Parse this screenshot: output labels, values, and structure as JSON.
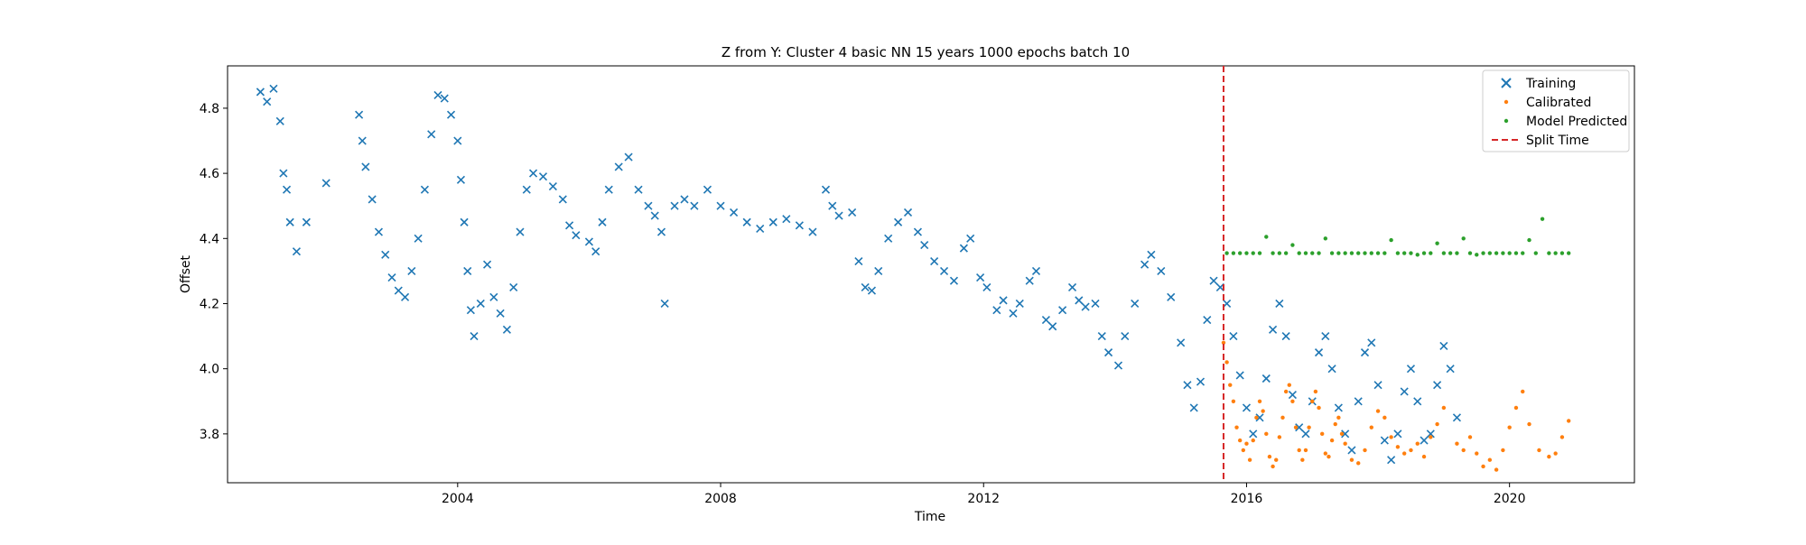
{
  "chart_data": {
    "type": "scatter",
    "title": "Z from Y: Cluster 4 basic NN 15 years 1000 epochs batch 10",
    "xlabel": "Time",
    "ylabel": "Offset",
    "xlim": [
      2000.5,
      2021.9
    ],
    "ylim": [
      3.65,
      4.93
    ],
    "x_ticks": [
      2004,
      2008,
      2012,
      2016,
      2020
    ],
    "y_ticks": [
      3.8,
      4.0,
      4.2,
      4.4,
      4.6,
      4.8
    ],
    "grid": false,
    "legend_position": "top-right",
    "split_time": 2015.65,
    "split_line_color": "#d62728",
    "split_line_label": "Split Time",
    "series": [
      {
        "name": "Training",
        "marker": "x",
        "color": "#1f77b4",
        "points": [
          [
            2001.0,
            4.85
          ],
          [
            2001.1,
            4.82
          ],
          [
            2001.2,
            4.86
          ],
          [
            2001.3,
            4.76
          ],
          [
            2001.35,
            4.6
          ],
          [
            2001.4,
            4.55
          ],
          [
            2001.45,
            4.45
          ],
          [
            2001.55,
            4.36
          ],
          [
            2001.7,
            4.45
          ],
          [
            2002.0,
            4.57
          ],
          [
            2002.5,
            4.78
          ],
          [
            2002.55,
            4.7
          ],
          [
            2002.6,
            4.62
          ],
          [
            2002.7,
            4.52
          ],
          [
            2002.8,
            4.42
          ],
          [
            2002.9,
            4.35
          ],
          [
            2003.0,
            4.28
          ],
          [
            2003.1,
            4.24
          ],
          [
            2003.2,
            4.22
          ],
          [
            2003.3,
            4.3
          ],
          [
            2003.4,
            4.4
          ],
          [
            2003.5,
            4.55
          ],
          [
            2003.6,
            4.72
          ],
          [
            2003.7,
            4.84
          ],
          [
            2003.8,
            4.83
          ],
          [
            2003.9,
            4.78
          ],
          [
            2004.0,
            4.7
          ],
          [
            2004.05,
            4.58
          ],
          [
            2004.1,
            4.45
          ],
          [
            2004.15,
            4.3
          ],
          [
            2004.2,
            4.18
          ],
          [
            2004.25,
            4.1
          ],
          [
            2004.35,
            4.2
          ],
          [
            2004.45,
            4.32
          ],
          [
            2004.55,
            4.22
          ],
          [
            2004.65,
            4.17
          ],
          [
            2004.75,
            4.12
          ],
          [
            2004.85,
            4.25
          ],
          [
            2004.95,
            4.42
          ],
          [
            2005.05,
            4.55
          ],
          [
            2005.15,
            4.6
          ],
          [
            2005.3,
            4.59
          ],
          [
            2005.45,
            4.56
          ],
          [
            2005.6,
            4.52
          ],
          [
            2005.7,
            4.44
          ],
          [
            2005.8,
            4.41
          ],
          [
            2006.0,
            4.39
          ],
          [
            2006.1,
            4.36
          ],
          [
            2006.2,
            4.45
          ],
          [
            2006.3,
            4.55
          ],
          [
            2006.45,
            4.62
          ],
          [
            2006.6,
            4.65
          ],
          [
            2006.75,
            4.55
          ],
          [
            2006.9,
            4.5
          ],
          [
            2007.0,
            4.47
          ],
          [
            2007.1,
            4.42
          ],
          [
            2007.15,
            4.2
          ],
          [
            2007.3,
            4.5
          ],
          [
            2007.45,
            4.52
          ],
          [
            2007.6,
            4.5
          ],
          [
            2007.8,
            4.55
          ],
          [
            2008.0,
            4.5
          ],
          [
            2008.2,
            4.48
          ],
          [
            2008.4,
            4.45
          ],
          [
            2008.6,
            4.43
          ],
          [
            2008.8,
            4.45
          ],
          [
            2009.0,
            4.46
          ],
          [
            2009.2,
            4.44
          ],
          [
            2009.4,
            4.42
          ],
          [
            2009.6,
            4.55
          ],
          [
            2009.7,
            4.5
          ],
          [
            2009.8,
            4.47
          ],
          [
            2010.0,
            4.48
          ],
          [
            2010.1,
            4.33
          ],
          [
            2010.2,
            4.25
          ],
          [
            2010.3,
            4.24
          ],
          [
            2010.4,
            4.3
          ],
          [
            2010.55,
            4.4
          ],
          [
            2010.7,
            4.45
          ],
          [
            2010.85,
            4.48
          ],
          [
            2011.0,
            4.42
          ],
          [
            2011.1,
            4.38
          ],
          [
            2011.25,
            4.33
          ],
          [
            2011.4,
            4.3
          ],
          [
            2011.55,
            4.27
          ],
          [
            2011.7,
            4.37
          ],
          [
            2011.8,
            4.4
          ],
          [
            2011.95,
            4.28
          ],
          [
            2012.05,
            4.25
          ],
          [
            2012.2,
            4.18
          ],
          [
            2012.3,
            4.21
          ],
          [
            2012.45,
            4.17
          ],
          [
            2012.55,
            4.2
          ],
          [
            2012.7,
            4.27
          ],
          [
            2012.8,
            4.3
          ],
          [
            2012.95,
            4.15
          ],
          [
            2013.05,
            4.13
          ],
          [
            2013.2,
            4.18
          ],
          [
            2013.35,
            4.25
          ],
          [
            2013.45,
            4.21
          ],
          [
            2013.55,
            4.19
          ],
          [
            2013.7,
            4.2
          ],
          [
            2013.8,
            4.1
          ],
          [
            2013.9,
            4.05
          ],
          [
            2014.05,
            4.01
          ],
          [
            2014.15,
            4.1
          ],
          [
            2014.3,
            4.2
          ],
          [
            2014.45,
            4.32
          ],
          [
            2014.55,
            4.35
          ],
          [
            2014.7,
            4.3
          ],
          [
            2014.85,
            4.22
          ],
          [
            2015.0,
            4.08
          ],
          [
            2015.1,
            3.95
          ],
          [
            2015.2,
            3.88
          ],
          [
            2015.3,
            3.96
          ],
          [
            2015.4,
            4.15
          ],
          [
            2015.5,
            4.27
          ],
          [
            2015.6,
            4.25
          ],
          [
            2015.7,
            4.2
          ],
          [
            2015.8,
            4.1
          ],
          [
            2015.9,
            3.98
          ],
          [
            2016.0,
            3.88
          ],
          [
            2016.1,
            3.8
          ],
          [
            2016.2,
            3.85
          ],
          [
            2016.3,
            3.97
          ],
          [
            2016.4,
            4.12
          ],
          [
            2016.5,
            4.2
          ],
          [
            2016.6,
            4.1
          ],
          [
            2016.7,
            3.92
          ],
          [
            2016.8,
            3.82
          ],
          [
            2016.9,
            3.8
          ],
          [
            2017.0,
            3.9
          ],
          [
            2017.1,
            4.05
          ],
          [
            2017.2,
            4.1
          ],
          [
            2017.3,
            4.0
          ],
          [
            2017.4,
            3.88
          ],
          [
            2017.5,
            3.8
          ],
          [
            2017.6,
            3.75
          ],
          [
            2017.7,
            3.9
          ],
          [
            2017.8,
            4.05
          ],
          [
            2017.9,
            4.08
          ],
          [
            2018.0,
            3.95
          ],
          [
            2018.1,
            3.78
          ],
          [
            2018.2,
            3.72
          ],
          [
            2018.3,
            3.8
          ],
          [
            2018.4,
            3.93
          ],
          [
            2018.5,
            4.0
          ],
          [
            2018.6,
            3.9
          ],
          [
            2018.7,
            3.78
          ],
          [
            2018.8,
            3.8
          ],
          [
            2018.9,
            3.95
          ],
          [
            2019.0,
            4.07
          ],
          [
            2019.1,
            4.0
          ],
          [
            2019.2,
            3.85
          ]
        ]
      },
      {
        "name": "Calibrated",
        "marker": "dot",
        "color": "#ff7f0e",
        "points": [
          [
            2015.65,
            4.08
          ],
          [
            2015.7,
            4.02
          ],
          [
            2015.75,
            3.95
          ],
          [
            2015.8,
            3.9
          ],
          [
            2015.85,
            3.82
          ],
          [
            2015.9,
            3.78
          ],
          [
            2015.95,
            3.75
          ],
          [
            2016.0,
            3.77
          ],
          [
            2016.05,
            3.72
          ],
          [
            2016.1,
            3.78
          ],
          [
            2016.15,
            3.85
          ],
          [
            2016.2,
            3.9
          ],
          [
            2016.25,
            3.87
          ],
          [
            2016.3,
            3.8
          ],
          [
            2016.35,
            3.73
          ],
          [
            2016.4,
            3.7
          ],
          [
            2016.45,
            3.72
          ],
          [
            2016.5,
            3.79
          ],
          [
            2016.55,
            3.85
          ],
          [
            2016.6,
            3.93
          ],
          [
            2016.65,
            3.95
          ],
          [
            2016.7,
            3.9
          ],
          [
            2016.75,
            3.82
          ],
          [
            2016.8,
            3.75
          ],
          [
            2016.85,
            3.72
          ],
          [
            2016.9,
            3.75
          ],
          [
            2016.95,
            3.82
          ],
          [
            2017.0,
            3.9
          ],
          [
            2017.05,
            3.93
          ],
          [
            2017.1,
            3.88
          ],
          [
            2017.15,
            3.8
          ],
          [
            2017.2,
            3.74
          ],
          [
            2017.25,
            3.73
          ],
          [
            2017.3,
            3.78
          ],
          [
            2017.35,
            3.83
          ],
          [
            2017.4,
            3.85
          ],
          [
            2017.45,
            3.8
          ],
          [
            2017.5,
            3.77
          ],
          [
            2017.6,
            3.72
          ],
          [
            2017.7,
            3.71
          ],
          [
            2017.8,
            3.75
          ],
          [
            2017.9,
            3.82
          ],
          [
            2018.0,
            3.87
          ],
          [
            2018.1,
            3.85
          ],
          [
            2018.2,
            3.79
          ],
          [
            2018.3,
            3.76
          ],
          [
            2018.4,
            3.74
          ],
          [
            2018.5,
            3.75
          ],
          [
            2018.6,
            3.77
          ],
          [
            2018.7,
            3.73
          ],
          [
            2018.8,
            3.79
          ],
          [
            2018.9,
            3.83
          ],
          [
            2019.0,
            3.88
          ],
          [
            2019.2,
            3.77
          ],
          [
            2019.3,
            3.75
          ],
          [
            2019.4,
            3.79
          ],
          [
            2019.5,
            3.74
          ],
          [
            2019.6,
            3.7
          ],
          [
            2019.7,
            3.72
          ],
          [
            2019.8,
            3.69
          ],
          [
            2019.9,
            3.75
          ],
          [
            2020.0,
            3.82
          ],
          [
            2020.1,
            3.88
          ],
          [
            2020.2,
            3.93
          ],
          [
            2020.3,
            3.83
          ],
          [
            2020.45,
            3.75
          ],
          [
            2020.6,
            3.73
          ],
          [
            2020.7,
            3.74
          ],
          [
            2020.8,
            3.79
          ],
          [
            2020.9,
            3.84
          ]
        ]
      },
      {
        "name": "Model Predicted",
        "marker": "dot",
        "color": "#2ca02c",
        "points": [
          [
            2015.7,
            4.355
          ],
          [
            2015.8,
            4.355
          ],
          [
            2015.9,
            4.355
          ],
          [
            2016.0,
            4.355
          ],
          [
            2016.1,
            4.355
          ],
          [
            2016.2,
            4.355
          ],
          [
            2016.3,
            4.405
          ],
          [
            2016.4,
            4.355
          ],
          [
            2016.5,
            4.355
          ],
          [
            2016.6,
            4.355
          ],
          [
            2016.7,
            4.38
          ],
          [
            2016.8,
            4.355
          ],
          [
            2016.9,
            4.355
          ],
          [
            2017.0,
            4.355
          ],
          [
            2017.1,
            4.355
          ],
          [
            2017.2,
            4.4
          ],
          [
            2017.3,
            4.355
          ],
          [
            2017.4,
            4.355
          ],
          [
            2017.5,
            4.355
          ],
          [
            2017.6,
            4.355
          ],
          [
            2017.7,
            4.355
          ],
          [
            2017.8,
            4.355
          ],
          [
            2017.9,
            4.355
          ],
          [
            2018.0,
            4.355
          ],
          [
            2018.1,
            4.355
          ],
          [
            2018.2,
            4.395
          ],
          [
            2018.3,
            4.355
          ],
          [
            2018.4,
            4.355
          ],
          [
            2018.5,
            4.355
          ],
          [
            2018.6,
            4.35
          ],
          [
            2018.7,
            4.355
          ],
          [
            2018.8,
            4.355
          ],
          [
            2018.9,
            4.385
          ],
          [
            2019.0,
            4.355
          ],
          [
            2019.1,
            4.355
          ],
          [
            2019.2,
            4.355
          ],
          [
            2019.3,
            4.4
          ],
          [
            2019.4,
            4.355
          ],
          [
            2019.5,
            4.35
          ],
          [
            2019.6,
            4.355
          ],
          [
            2019.7,
            4.355
          ],
          [
            2019.8,
            4.355
          ],
          [
            2019.9,
            4.355
          ],
          [
            2020.0,
            4.355
          ],
          [
            2020.1,
            4.355
          ],
          [
            2020.2,
            4.355
          ],
          [
            2020.3,
            4.395
          ],
          [
            2020.4,
            4.355
          ],
          [
            2020.5,
            4.46
          ],
          [
            2020.6,
            4.355
          ],
          [
            2020.7,
            4.355
          ],
          [
            2020.8,
            4.355
          ],
          [
            2020.9,
            4.355
          ]
        ]
      }
    ]
  }
}
